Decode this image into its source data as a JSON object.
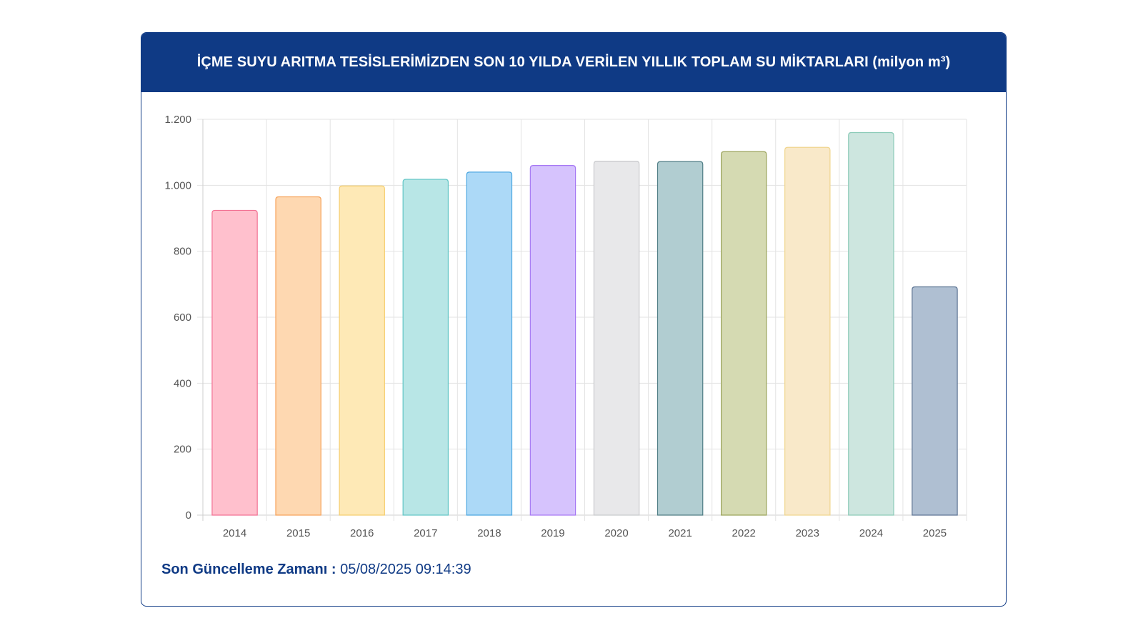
{
  "header": {
    "title": "İÇME SUYU ARITMA TESİSLERİMİZDEN SON 10 YILDA VERİLEN YILLIK TOPLAM SU MİKTARLARI (milyon m³)"
  },
  "footer": {
    "label": "Son Güncelleme Zamanı :",
    "value": "05/08/2025 09:14:39"
  },
  "chart_data": {
    "type": "bar",
    "title": "İÇME SUYU ARITMA TESİSLERİMİZDEN SON 10 YILDA VERİLEN YILLIK TOPLAM SU MİKTARLARI (milyon m³)",
    "xlabel": "",
    "ylabel": "",
    "ylim": [
      0,
      1200
    ],
    "yticks": [
      0,
      200,
      400,
      600,
      800,
      1000,
      1200
    ],
    "ytick_labels": [
      "0",
      "200",
      "400",
      "600",
      "800",
      "1.000",
      "1.200"
    ],
    "grid": true,
    "categories": [
      "2014",
      "2015",
      "2016",
      "2017",
      "2018",
      "2019",
      "2020",
      "2021",
      "2022",
      "2023",
      "2024",
      "2025"
    ],
    "values": [
      924,
      965,
      998,
      1018,
      1040,
      1060,
      1073,
      1072,
      1102,
      1115,
      1160,
      692
    ],
    "colors": {
      "fill": [
        "#ffc0cd",
        "#fed8b1",
        "#fee9b6",
        "#b8e6e6",
        "#acd9f7",
        "#d6c3fd",
        "#e8e8ea",
        "#b1cdd1",
        "#d5dab2",
        "#f9e9c9",
        "#cde6df",
        "#afbfd2"
      ],
      "stroke": [
        "#f27193",
        "#f6a25a",
        "#f5ce6e",
        "#63c6c6",
        "#4ba6e0",
        "#a679f4",
        "#c8c9cc",
        "#4f7d85",
        "#9aa35a",
        "#f0d58e",
        "#8ccbb8",
        "#5d7594"
      ]
    }
  }
}
